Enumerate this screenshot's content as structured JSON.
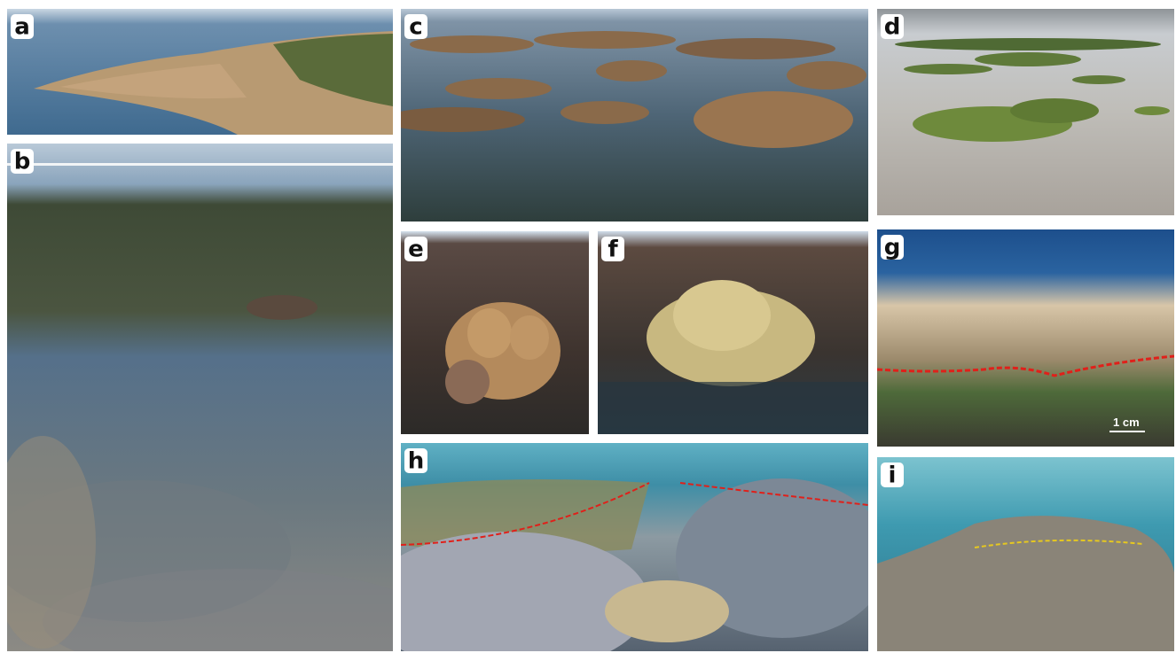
{
  "panels": [
    {
      "label": "a"
    },
    {
      "label": "b"
    },
    {
      "label": "c"
    },
    {
      "label": "d"
    },
    {
      "label": "e"
    },
    {
      "label": "f"
    },
    {
      "label": "g"
    },
    {
      "label": "h"
    },
    {
      "label": "i"
    }
  ],
  "scale_bar": "1 cm"
}
